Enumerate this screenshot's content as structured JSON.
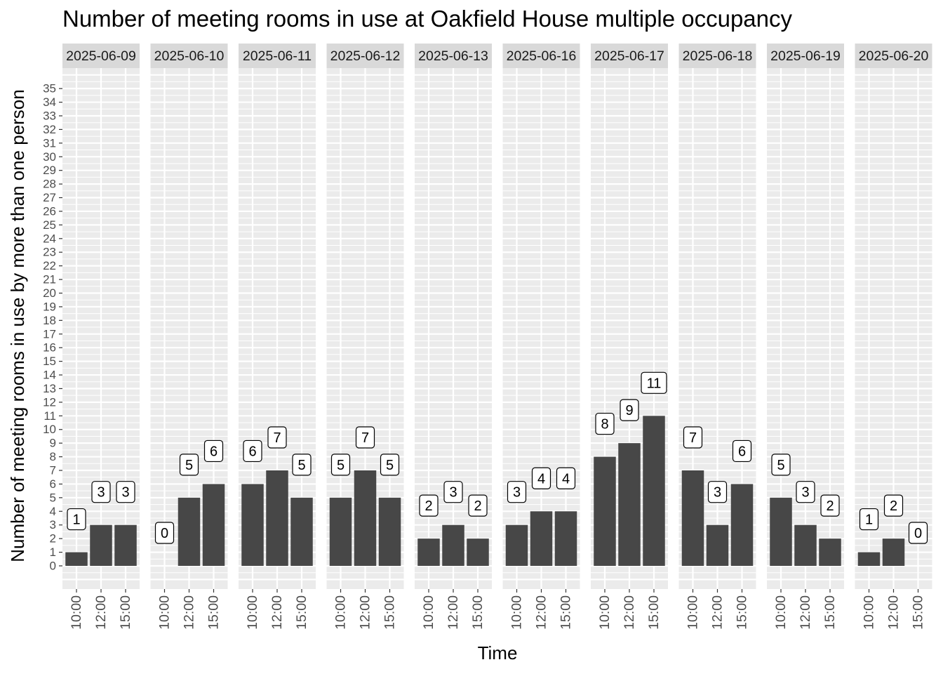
{
  "chart_data": {
    "type": "bar",
    "title": "Number of meeting rooms in use at Oakfield House multiple occupancy",
    "xlabel": "Time",
    "ylabel": "Number of meeting rooms in use by more than one person",
    "ylim": [
      -1.7,
      36.5
    ],
    "y_ticks": [
      0,
      1,
      2,
      3,
      4,
      5,
      6,
      7,
      8,
      9,
      10,
      11,
      12,
      13,
      14,
      15,
      16,
      17,
      18,
      19,
      20,
      21,
      22,
      23,
      24,
      25,
      26,
      27,
      28,
      29,
      30,
      31,
      32,
      33,
      34,
      35
    ],
    "categories": [
      "10:00",
      "12:00",
      "15:00"
    ],
    "facets": [
      {
        "label": "2025-06-09",
        "values": [
          1,
          3,
          3
        ]
      },
      {
        "label": "2025-06-10",
        "values": [
          0,
          5,
          6
        ]
      },
      {
        "label": "2025-06-11",
        "values": [
          6,
          7,
          5
        ]
      },
      {
        "label": "2025-06-12",
        "values": [
          5,
          7,
          5
        ]
      },
      {
        "label": "2025-06-13",
        "values": [
          2,
          3,
          2
        ]
      },
      {
        "label": "2025-06-16",
        "values": [
          3,
          4,
          4
        ]
      },
      {
        "label": "2025-06-17",
        "values": [
          8,
          9,
          11
        ]
      },
      {
        "label": "2025-06-18",
        "values": [
          7,
          3,
          6
        ]
      },
      {
        "label": "2025-06-19",
        "values": [
          5,
          3,
          2
        ]
      },
      {
        "label": "2025-06-20",
        "values": [
          1,
          2,
          0
        ]
      }
    ],
    "grid": true,
    "legend": "none",
    "colors": {
      "bar": "#474747",
      "panel": "#EBEBEB",
      "strip": "#D9D9D9",
      "grid": "#FFFFFF",
      "text": "#4D4D4D"
    }
  }
}
